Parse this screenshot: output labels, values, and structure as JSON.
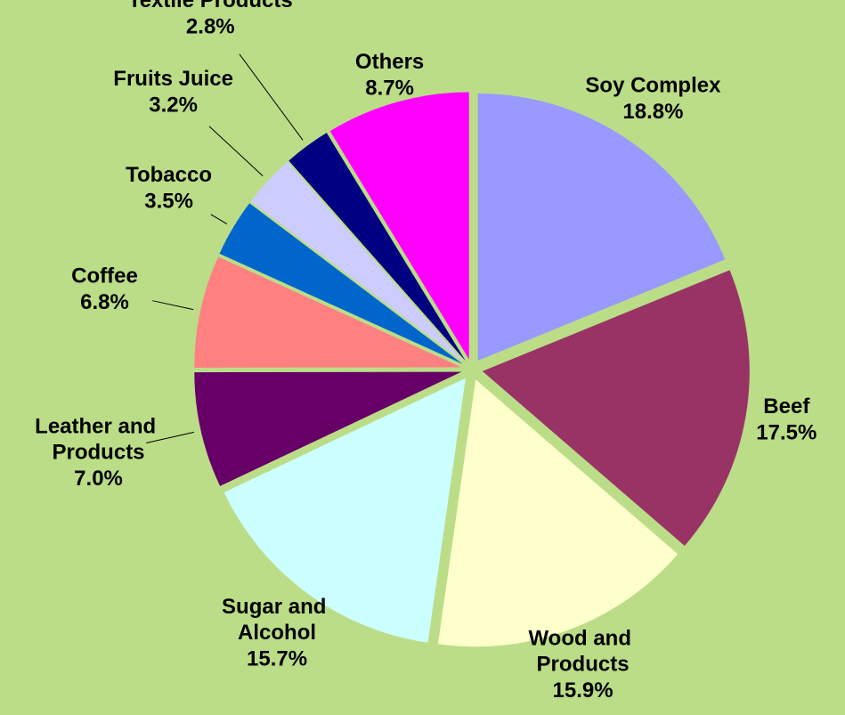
{
  "chart_data": {
    "type": "pie",
    "categories": [
      "Soy Complex",
      "Beef",
      "Wood and Products",
      "Sugar and Alcohol",
      "Leather and Products",
      "Coffee",
      "Tobacco",
      "Fruits Juice",
      "Textile Products",
      "Others"
    ],
    "values": [
      18.8,
      17.5,
      15.9,
      15.7,
      7.0,
      6.8,
      3.5,
      3.2,
      2.8,
      8.7
    ],
    "value_labels": [
      "18.8%",
      "17.5%",
      "15.9%",
      "15.7%",
      "7.0%",
      "6.8%",
      "3.5%",
      "3.2%",
      "2.8%",
      "8.7%"
    ],
    "colors": [
      "#9999ff",
      "#993366",
      "#ffffcc",
      "#ccffff",
      "#660066",
      "#ff8080",
      "#0066cc",
      "#ccccff",
      "#000080",
      "#ff00ff"
    ]
  }
}
